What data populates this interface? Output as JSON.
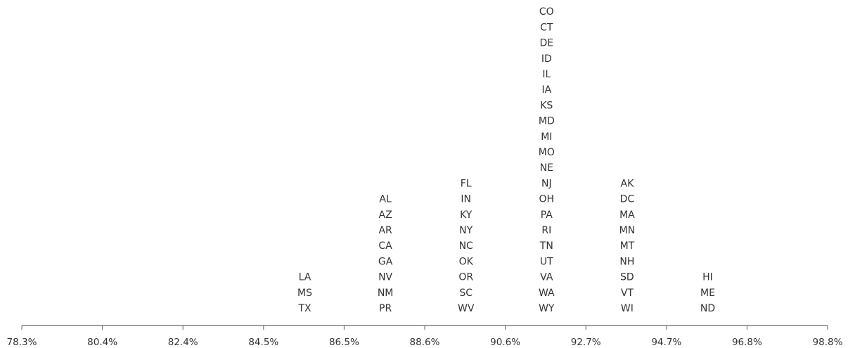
{
  "chart_data": {
    "type": "histogram",
    "title": "",
    "xlabel": "",
    "ylabel": "",
    "x_ticks": [
      "78.3%",
      "80.4%",
      "82.4%",
      "84.5%",
      "86.5%",
      "88.6%",
      "90.6%",
      "92.7%",
      "94.7%",
      "96.8%",
      "98.8%"
    ],
    "xlim": [
      78.3,
      98.8
    ],
    "grid": false,
    "bins": [
      {
        "range": [
          84.5,
          86.5
        ],
        "labels": [
          "LA",
          "MS",
          "TX"
        ]
      },
      {
        "range": [
          86.5,
          88.6
        ],
        "labels": [
          "AL",
          "AZ",
          "AR",
          "CA",
          "GA",
          "NV",
          "NM",
          "PR"
        ]
      },
      {
        "range": [
          88.6,
          90.6
        ],
        "labels": [
          "FL",
          "IN",
          "KY",
          "NY",
          "NC",
          "OK",
          "OR",
          "SC",
          "WV"
        ]
      },
      {
        "range": [
          90.6,
          92.7
        ],
        "labels": [
          "CO",
          "CT",
          "DE",
          "ID",
          "IL",
          "IA",
          "KS",
          "MD",
          "MI",
          "MO",
          "NE",
          "NJ",
          "OH",
          "PA",
          "RI",
          "TN",
          "UT",
          "VA",
          "WA",
          "WY"
        ]
      },
      {
        "range": [
          92.7,
          94.7
        ],
        "labels": [
          "AK",
          "DC",
          "MA",
          "MN",
          "MT",
          "NH",
          "SD",
          "VT",
          "WI"
        ]
      },
      {
        "range": [
          94.7,
          96.8
        ],
        "labels": [
          "HI",
          "ME",
          "ND"
        ]
      }
    ]
  }
}
